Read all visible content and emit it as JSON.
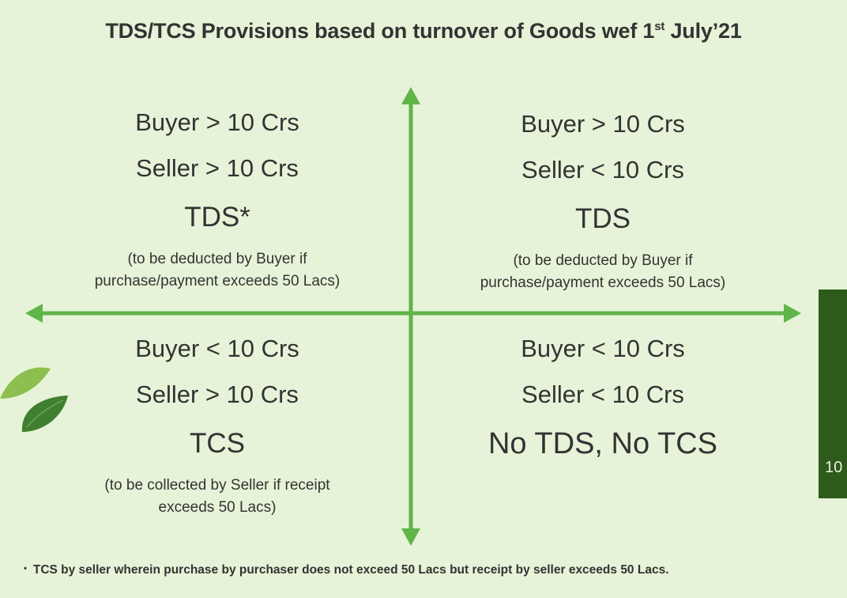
{
  "title": {
    "main": "TDS/TCS Provisions based on turnover of Goods wef 1",
    "superscript": "st",
    "suffix": " July’21"
  },
  "quadrants": {
    "top_left": {
      "buyer": "Buyer > 10 Crs",
      "seller": "Seller > 10 Crs",
      "tax": "TDS*",
      "note_line1": "(to be deducted by Buyer if",
      "note_line2": "purchase/payment exceeds 50 Lacs)"
    },
    "top_right": {
      "buyer": "Buyer > 10 Crs",
      "seller": "Seller < 10 Crs",
      "tax": "TDS",
      "note_line1": "(to be deducted by Buyer if",
      "note_line2": "purchase/payment exceeds 50 Lacs)"
    },
    "bottom_left": {
      "buyer": "Buyer < 10 Crs",
      "seller": "Seller > 10 Crs",
      "tax": "TCS",
      "note_line1": "(to be collected by Seller if receipt",
      "note_line2": "exceeds 50 Lacs)"
    },
    "bottom_right": {
      "buyer": "Buyer < 10 Crs",
      "seller": "Seller < 10 Crs",
      "tax": "No TDS, No TCS"
    }
  },
  "side_panel": {
    "text": "10"
  },
  "footnote": {
    "bullet": "•",
    "text": "TCS by seller wherein purchase by purchaser does not exceed 50 Lacs but receipt by seller exceeds 50 Lacs."
  },
  "colors": {
    "background": "#e6f3d8",
    "arrow": "#5fb548",
    "side_panel": "#2e5a1c",
    "leaf_light": "#8dbf4e",
    "leaf_dark": "#3f7f2f"
  }
}
